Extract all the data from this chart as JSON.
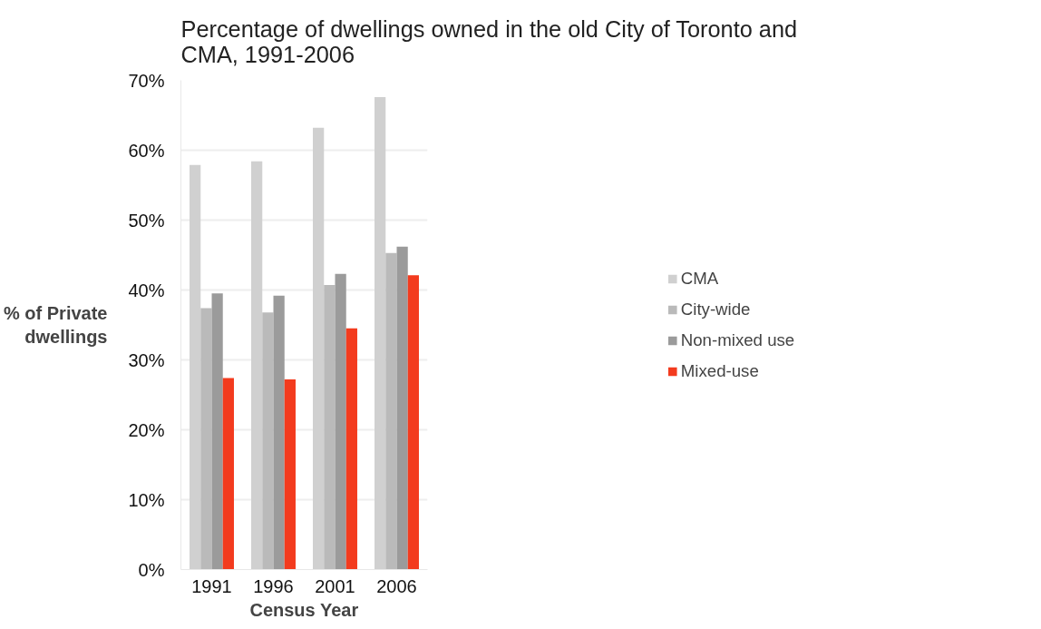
{
  "chart_data": {
    "type": "bar",
    "title": "Percentage of dwellings owned in the old City of Toronto and CMA, 1991-2006",
    "xlabel": "Census Year",
    "ylabel": "% of Private dwellings",
    "categories": [
      "1991",
      "1996",
      "2001",
      "2006"
    ],
    "series": [
      {
        "name": "CMA",
        "color": "#d0d0d0",
        "values": [
          57.9,
          58.4,
          63.2,
          67.6
        ]
      },
      {
        "name": "City-wide",
        "color": "#bababa",
        "values": [
          37.4,
          36.8,
          40.7,
          45.3
        ]
      },
      {
        "name": "Non-mixed use",
        "color": "#9b9b9b",
        "values": [
          39.5,
          39.2,
          42.3,
          46.2
        ]
      },
      {
        "name": "Mixed-use",
        "color": "#f33b1e",
        "values": [
          27.4,
          27.2,
          34.5,
          42.1
        ]
      }
    ],
    "ylim": [
      0,
      70
    ],
    "yticks": [
      {
        "value": 0,
        "label": "0%"
      },
      {
        "value": 10,
        "label": "10%"
      },
      {
        "value": 20,
        "label": "20%"
      },
      {
        "value": 30,
        "label": "30%"
      },
      {
        "value": 40,
        "label": "40%"
      },
      {
        "value": 50,
        "label": "50%"
      },
      {
        "value": 60,
        "label": "60%"
      },
      {
        "value": 70,
        "label": "70%"
      }
    ],
    "grid": "y",
    "legend": "right"
  }
}
